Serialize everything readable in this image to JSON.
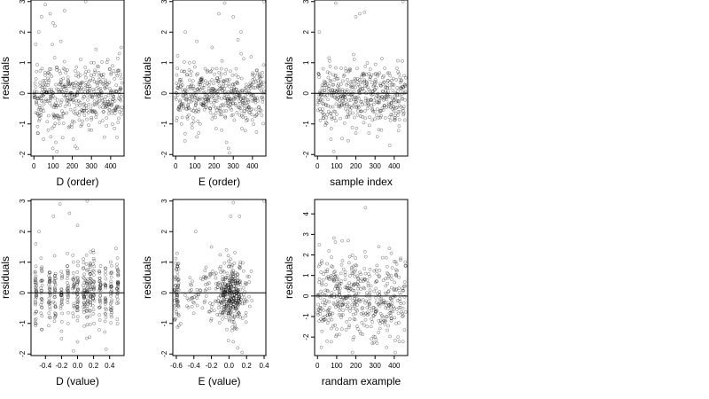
{
  "chart_data": [
    {
      "type": "scatter",
      "xlabel": "D (order)",
      "ylabel": "residuals",
      "xlim": [
        -15,
        470
      ],
      "ylim": [
        -2.05,
        3.05
      ],
      "xticks": [
        0,
        100,
        200,
        300,
        400
      ],
      "xtick_labels": [
        "0",
        "100",
        "200",
        "300",
        "400"
      ],
      "yticks": [
        -2,
        -1,
        0,
        1,
        2,
        3
      ],
      "ytick_labels": [
        "-2",
        "-1",
        "0",
        "1",
        "2",
        "3"
      ],
      "hline": 0,
      "n_points": 460,
      "points": [
        [
          10,
          1.6
        ],
        [
          25,
          2.0
        ],
        [
          40,
          2.5
        ],
        [
          60,
          2.9
        ],
        [
          85,
          2.6
        ],
        [
          100,
          2.3
        ],
        [
          110,
          2.2
        ],
        [
          140,
          1.7
        ],
        [
          160,
          2.7
        ],
        [
          270,
          3.0
        ],
        [
          20,
          -1.3
        ],
        [
          50,
          -1.5
        ],
        [
          75,
          -1.2
        ],
        [
          115,
          -1.6
        ],
        [
          120,
          -1.9
        ],
        [
          150,
          -1.45
        ],
        [
          205,
          -1.5
        ],
        [
          225,
          -1.8
        ],
        [
          300,
          -1.2
        ],
        [
          340,
          0.45
        ],
        [
          360,
          0.3
        ],
        [
          380,
          0.2
        ],
        [
          395,
          0.8
        ],
        [
          410,
          0.9
        ],
        [
          430,
          0.65
        ],
        [
          445,
          1.3
        ],
        [
          455,
          1.5
        ],
        [
          30,
          -0.4
        ],
        [
          90,
          -0.15
        ],
        [
          180,
          0.4
        ],
        [
          240,
          -0.4
        ],
        [
          320,
          -0.6
        ]
      ]
    },
    {
      "type": "scatter",
      "xlabel": "E (order)",
      "ylabel": "residuals",
      "xlim": [
        -15,
        470
      ],
      "ylim": [
        -2.05,
        3.05
      ],
      "xticks": [
        0,
        100,
        200,
        300,
        400
      ],
      "xtick_labels": [
        "0",
        "100",
        "200",
        "300",
        "400"
      ],
      "yticks": [
        -2,
        -1,
        0,
        1,
        2,
        3
      ],
      "ytick_labels": [
        "-2",
        "-1",
        "0",
        "1",
        "2",
        "3"
      ],
      "hline": 0,
      "n_points": 460,
      "points": [
        [
          50,
          2.0
        ],
        [
          110,
          1.7
        ],
        [
          190,
          1.5
        ],
        [
          225,
          2.6
        ],
        [
          255,
          2.95
        ],
        [
          300,
          2.5
        ],
        [
          325,
          1.75
        ],
        [
          340,
          2.0
        ],
        [
          460,
          3.0
        ],
        [
          5,
          -0.9
        ],
        [
          30,
          -1.0
        ],
        [
          120,
          -1.3
        ],
        [
          240,
          -1.2
        ],
        [
          265,
          -1.6
        ],
        [
          275,
          -1.8
        ],
        [
          280,
          -1.95
        ],
        [
          60,
          0.6
        ],
        [
          140,
          0.4
        ],
        [
          200,
          -0.3
        ],
        [
          300,
          0.3
        ],
        [
          360,
          -0.5
        ],
        [
          400,
          0.6
        ]
      ]
    },
    {
      "type": "scatter",
      "xlabel": "sample index",
      "ylabel": "residuals",
      "xlim": [
        -15,
        470
      ],
      "ylim": [
        -2.05,
        3.05
      ],
      "xticks": [
        0,
        100,
        200,
        300,
        400
      ],
      "xtick_labels": [
        "0",
        "100",
        "200",
        "300",
        "400"
      ],
      "yticks": [
        -2,
        -1,
        0,
        1,
        2,
        3
      ],
      "ytick_labels": [
        "-2",
        "-1",
        "0",
        "1",
        "2",
        "3"
      ],
      "hline": 0,
      "n_points": 460,
      "points": [
        [
          10,
          2.0
        ],
        [
          95,
          2.95
        ],
        [
          200,
          2.5
        ],
        [
          220,
          2.6
        ],
        [
          245,
          2.65
        ],
        [
          445,
          3.0
        ],
        [
          70,
          -1.5
        ],
        [
          85,
          -1.9
        ],
        [
          160,
          -1.55
        ],
        [
          200,
          -1.3
        ],
        [
          30,
          0.8
        ],
        [
          140,
          0.6
        ],
        [
          300,
          0.3
        ],
        [
          350,
          -0.4
        ],
        [
          420,
          0.7
        ]
      ]
    },
    {
      "type": "scatter",
      "xlabel": "D (value)",
      "ylabel": "residuals",
      "xlim": [
        -0.58,
        0.58
      ],
      "ylim": [
        -2.05,
        3.05
      ],
      "xticks": [
        -0.4,
        -0.2,
        0.0,
        0.2,
        0.4
      ],
      "xtick_labels": [
        "-0.4",
        "-0.2",
        "0.0",
        "0.2",
        "0.4"
      ],
      "yticks": [
        -2,
        -1,
        0,
        1,
        2,
        3
      ],
      "ytick_labels": [
        "-2",
        "-1",
        "0",
        "1",
        "2",
        "3"
      ],
      "hline": 0,
      "n_points": 460,
      "points": [
        [
          -0.52,
          1.6
        ],
        [
          -0.48,
          2.0
        ],
        [
          -0.3,
          2.5
        ],
        [
          -0.22,
          2.9
        ],
        [
          -0.1,
          2.6
        ],
        [
          0.0,
          2.2
        ],
        [
          0.12,
          3.0
        ],
        [
          -0.45,
          -1.2
        ],
        [
          -0.2,
          -1.5
        ],
        [
          -0.05,
          -1.9
        ],
        [
          0.0,
          -1.6
        ],
        [
          0.15,
          -1.45
        ],
        [
          0.48,
          1.45
        ],
        [
          0.35,
          0.8
        ],
        [
          0.1,
          0.4
        ],
        [
          -0.3,
          -0.3
        ]
      ]
    },
    {
      "type": "scatter",
      "xlabel": "E (value)",
      "ylabel": "residuals",
      "xlim": [
        -0.64,
        0.42
      ],
      "ylim": [
        -2.05,
        3.05
      ],
      "xticks": [
        -0.6,
        -0.4,
        -0.2,
        0.0,
        0.2,
        0.4
      ],
      "xtick_labels": [
        "-0.6",
        "-0.4",
        "-0.2",
        "0.0",
        "0.2",
        "0.4"
      ],
      "yticks": [
        -2,
        -1,
        0,
        1,
        2,
        3
      ],
      "ytick_labels": [
        "-2",
        "-1",
        "0",
        "1",
        "2",
        "3"
      ],
      "hline": 0,
      "n_points": 460,
      "points": [
        [
          -0.38,
          2.0
        ],
        [
          -0.2,
          1.5
        ],
        [
          0.02,
          2.5
        ],
        [
          0.05,
          2.95
        ],
        [
          0.12,
          2.5
        ],
        [
          0.4,
          3.0
        ],
        [
          -0.62,
          -0.9
        ],
        [
          -0.55,
          -1.0
        ],
        [
          0.05,
          -1.6
        ],
        [
          0.1,
          -1.8
        ],
        [
          0.15,
          -1.95
        ],
        [
          0.1,
          -0.6
        ],
        [
          0.12,
          -0.7
        ],
        [
          0.2,
          0.3
        ],
        [
          -0.1,
          -0.3
        ]
      ]
    },
    {
      "type": "scatter",
      "xlabel": "randam example",
      "ylabel": "residuals",
      "xlim": [
        -15,
        470
      ],
      "ylim": [
        -2.9,
        4.7
      ],
      "xticks": [
        0,
        100,
        200,
        300,
        400
      ],
      "xtick_labels": [
        "0",
        "100",
        "200",
        "300",
        "400"
      ],
      "yticks": [
        -2,
        -1,
        0,
        1,
        2,
        3,
        4
      ],
      "ytick_labels": [
        "-2",
        "-1",
        "0",
        "1",
        "2",
        "3",
        "4"
      ],
      "hline": 0,
      "n_points": 460,
      "points": [
        [
          10,
          2.5
        ],
        [
          60,
          2.2
        ],
        [
          160,
          2.7
        ],
        [
          250,
          4.3
        ],
        [
          320,
          2.4
        ],
        [
          20,
          -2.5
        ],
        [
          50,
          -2.2
        ],
        [
          190,
          -2.0
        ],
        [
          310,
          -2.3
        ],
        [
          360,
          -2.5
        ],
        [
          420,
          -2.0
        ],
        [
          100,
          0.5
        ],
        [
          400,
          -0.6
        ]
      ]
    }
  ]
}
